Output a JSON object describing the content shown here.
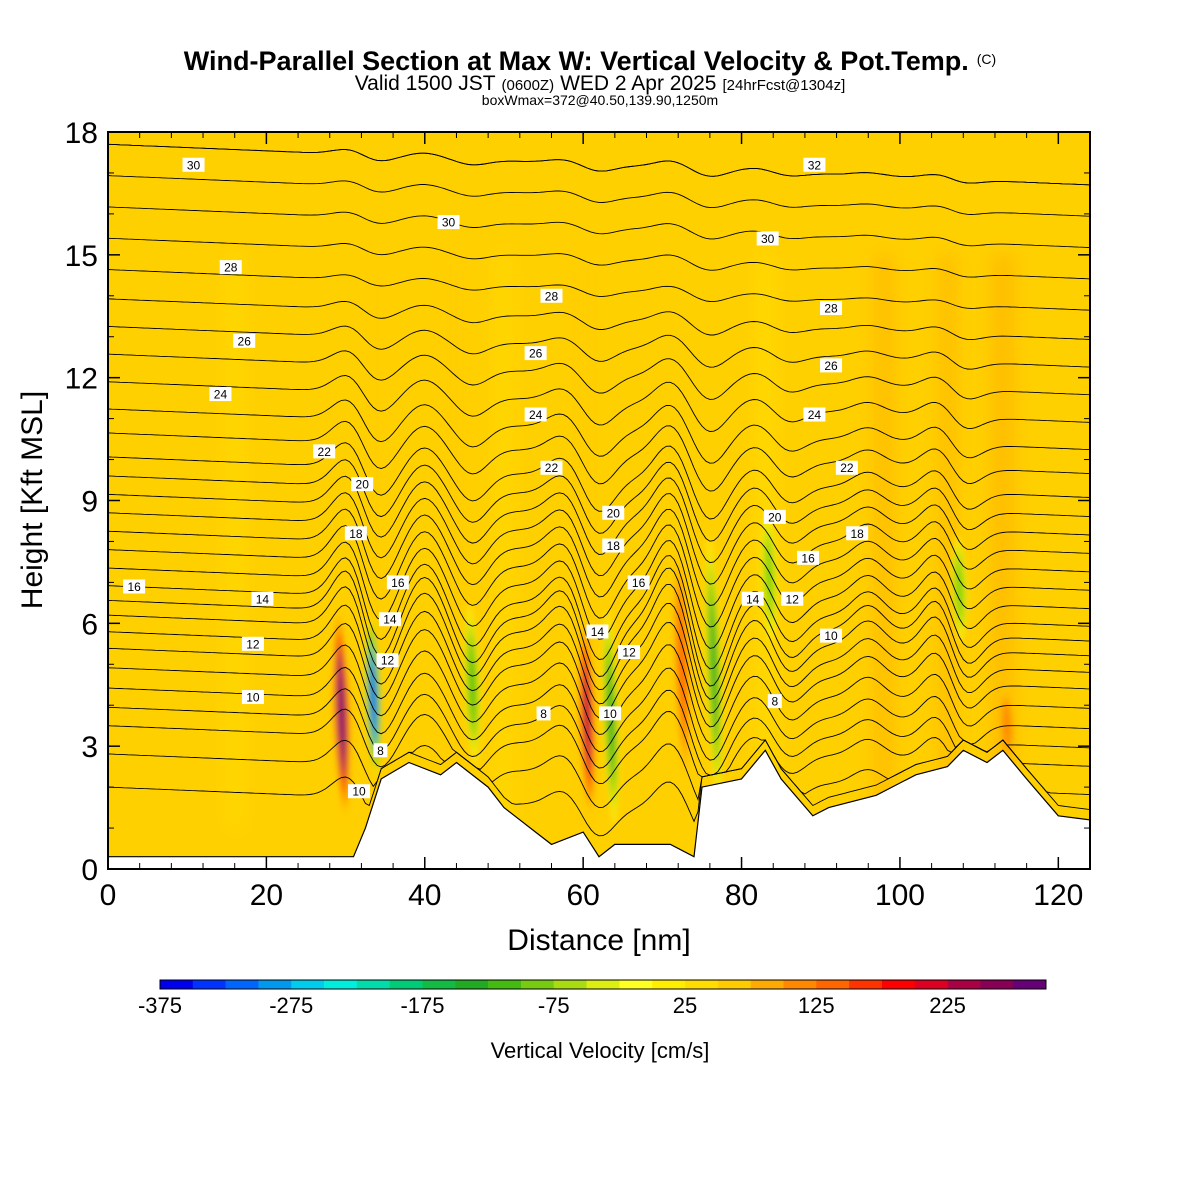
{
  "header": {
    "title": "Wind-Parallel Section at Max W: Vertical Velocity & Pot.Temp.",
    "title_mark": "(C)",
    "valid_prefix": "Valid 1500 JST",
    "valid_utc": "(0600Z)",
    "valid_date": "WED 2 Apr 2025",
    "forecast": "[24hrFcst@1304z]",
    "box_info": "boxWmax=372@40.50,139.90,1250m"
  },
  "chart_data": {
    "type": "heatmap",
    "title": "Wind-Parallel Section at Max W: Vertical Velocity & Pot.Temp.",
    "xlabel": "Distance [nm]",
    "ylabel": "Height [Kft MSL]",
    "xlim": [
      0,
      124
    ],
    "ylim": [
      0,
      18
    ],
    "x_ticks": [
      0,
      20,
      40,
      60,
      80,
      100,
      120
    ],
    "y_ticks": [
      0,
      3,
      6,
      9,
      12,
      15,
      18
    ],
    "grid": false,
    "background_fill": "vertical velocity 0 to 50 cm/s (yellow-orange)",
    "colorbar": {
      "title": "Vertical Velocity [cm/s]",
      "tick_labels": [
        "-375",
        "-275",
        "-175",
        "-75",
        "25",
        "125",
        "225"
      ],
      "tick_values": [
        -375,
        -275,
        -175,
        -75,
        25,
        125,
        225
      ],
      "range": [
        -375,
        300
      ],
      "step": 25,
      "colors": [
        "#0000ee",
        "#0033ff",
        "#0066ff",
        "#0099ee",
        "#00ccee",
        "#00eedd",
        "#00ddaa",
        "#00cc77",
        "#11bb44",
        "#22aa22",
        "#44bb11",
        "#77cc11",
        "#aadd11",
        "#ddee11",
        "#ffff22",
        "#ffee00",
        "#ffdd00",
        "#ffcc00",
        "#ffaa00",
        "#ff8800",
        "#ff6600",
        "#ff3300",
        "#ff0000",
        "#dd0022",
        "#aa0044",
        "#880055",
        "#660077"
      ]
    },
    "vertical_velocity_cores": [
      {
        "x": 29.5,
        "y_bottom": 1.2,
        "y_top": 6.4,
        "w_max": 300,
        "sign": "positive"
      },
      {
        "x": 33.5,
        "y_bottom": 2.2,
        "y_top": 6.2,
        "w_max": -375,
        "sign": "negative"
      },
      {
        "x": 46,
        "y_bottom": 2.5,
        "y_top": 6.5,
        "w_max": -125,
        "sign": "negative"
      },
      {
        "x": 60.5,
        "y_bottom": 1.2,
        "y_top": 6.2,
        "w_max": 225,
        "sign": "positive"
      },
      {
        "x": 63.5,
        "y_bottom": 1.0,
        "y_top": 6.4,
        "w_max": -150,
        "sign": "negative"
      },
      {
        "x": 72.5,
        "y_bottom": 2.0,
        "y_top": 8.0,
        "w_max": 125,
        "sign": "positive"
      },
      {
        "x": 76.5,
        "y_bottom": 1.6,
        "y_top": 8.2,
        "w_max": -150,
        "sign": "negative"
      },
      {
        "x": 83.5,
        "y_bottom": 5.5,
        "y_top": 8.8,
        "w_max": -100,
        "sign": "negative"
      },
      {
        "x": 107.5,
        "y_bottom": 5.5,
        "y_top": 8.2,
        "w_max": -100,
        "sign": "negative"
      },
      {
        "x": 113.5,
        "y_bottom": 2.5,
        "y_top": 4.5,
        "w_max": 100,
        "sign": "positive"
      }
    ],
    "terrain_profile": {
      "label": "terrain (white)",
      "x": [
        0,
        31,
        32.5,
        34.5,
        38,
        42,
        44,
        48,
        50,
        54,
        56,
        60,
        62,
        64,
        71,
        74,
        75,
        80,
        83,
        85,
        89,
        91,
        97,
        102,
        106,
        108,
        111,
        113,
        116,
        120,
        124
      ],
      "y": [
        0.3,
        0.3,
        1.0,
        2.2,
        2.6,
        2.3,
        2.6,
        2.0,
        1.5,
        0.9,
        0.6,
        0.9,
        0.3,
        0.6,
        0.6,
        0.3,
        2.0,
        2.2,
        2.9,
        2.2,
        1.3,
        1.5,
        1.8,
        2.3,
        2.5,
        2.9,
        2.6,
        2.9,
        2.2,
        1.3,
        1.2
      ]
    },
    "theta_contours": {
      "units": "deg C (potential temperature)",
      "levels": [
        8,
        10,
        12,
        14,
        16,
        18,
        20,
        22,
        24,
        26,
        28,
        30,
        32
      ],
      "labels": [
        {
          "text": "30",
          "x": 10.8,
          "y": 17.2
        },
        {
          "text": "30",
          "x": 43,
          "y": 15.8
        },
        {
          "text": "30",
          "x": 83.3,
          "y": 15.4
        },
        {
          "text": "32",
          "x": 89.2,
          "y": 17.2
        },
        {
          "text": "28",
          "x": 15.5,
          "y": 14.7
        },
        {
          "text": "28",
          "x": 56,
          "y": 14.0
        },
        {
          "text": "28",
          "x": 91.3,
          "y": 13.7
        },
        {
          "text": "26",
          "x": 17.2,
          "y": 12.9
        },
        {
          "text": "26",
          "x": 54,
          "y": 12.6
        },
        {
          "text": "26",
          "x": 91.3,
          "y": 12.3
        },
        {
          "text": "24",
          "x": 14.2,
          "y": 11.6
        },
        {
          "text": "24",
          "x": 54,
          "y": 11.1
        },
        {
          "text": "24",
          "x": 89.2,
          "y": 11.1
        },
        {
          "text": "22",
          "x": 27.3,
          "y": 10.2
        },
        {
          "text": "22",
          "x": 56,
          "y": 9.8
        },
        {
          "text": "22",
          "x": 93.3,
          "y": 9.8
        },
        {
          "text": "20",
          "x": 32.1,
          "y": 9.4
        },
        {
          "text": "20",
          "x": 63.8,
          "y": 8.7
        },
        {
          "text": "20",
          "x": 84.2,
          "y": 8.6
        },
        {
          "text": "18",
          "x": 31.3,
          "y": 8.2
        },
        {
          "text": "18",
          "x": 63.8,
          "y": 7.9
        },
        {
          "text": "18",
          "x": 94.6,
          "y": 8.2
        },
        {
          "text": "16",
          "x": 3.3,
          "y": 6.9
        },
        {
          "text": "16",
          "x": 36.6,
          "y": 7.0
        },
        {
          "text": "16",
          "x": 67,
          "y": 7.0
        },
        {
          "text": "16",
          "x": 88.4,
          "y": 7.6
        },
        {
          "text": "14",
          "x": 19.5,
          "y": 6.6
        },
        {
          "text": "14",
          "x": 35.6,
          "y": 6.1
        },
        {
          "text": "14",
          "x": 61.8,
          "y": 5.8
        },
        {
          "text": "14",
          "x": 81.4,
          "y": 6.6
        },
        {
          "text": "12",
          "x": 18.3,
          "y": 5.5
        },
        {
          "text": "12",
          "x": 35.3,
          "y": 5.1
        },
        {
          "text": "12",
          "x": 65.8,
          "y": 5.3
        },
        {
          "text": "12",
          "x": 86.4,
          "y": 6.6
        },
        {
          "text": "10",
          "x": 18.3,
          "y": 4.2
        },
        {
          "text": "10",
          "x": 31.7,
          "y": 1.9
        },
        {
          "text": "10",
          "x": 63.4,
          "y": 3.8
        },
        {
          "text": "10",
          "x": 91.3,
          "y": 5.7
        },
        {
          "text": "8",
          "x": 34.4,
          "y": 2.9
        },
        {
          "text": "8",
          "x": 55,
          "y": 3.8
        },
        {
          "text": "8",
          "x": 84.2,
          "y": 4.1
        }
      ]
    }
  }
}
